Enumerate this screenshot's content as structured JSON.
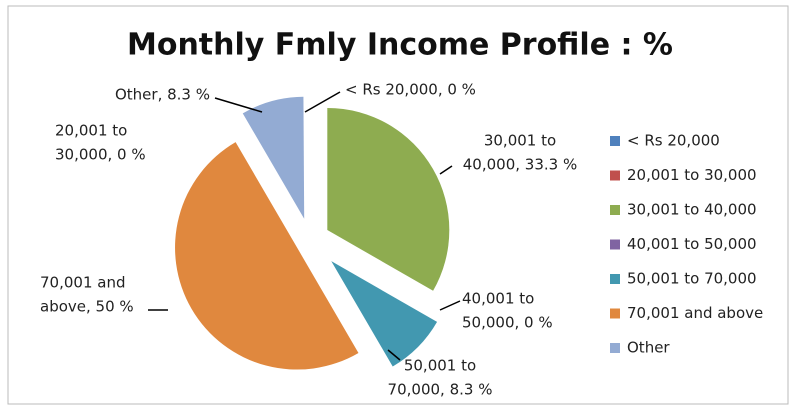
{
  "chart_data": {
    "type": "pie",
    "title": "Monthly Fmly  Income Profile : %",
    "categories": [
      "< Rs 20,000",
      "20,001 to 30,000",
      "30,001 to 40,000",
      "40,001 to 50,000",
      "50,001 to 70,000",
      "70,001 and above",
      "Other"
    ],
    "values": [
      0,
      0,
      33.3,
      0,
      8.3,
      50,
      8.3
    ],
    "value_labels": [
      [
        "< Rs 20,000, 0 %"
      ],
      [
        "20,001 to",
        "30,000, 0 %"
      ],
      [
        "30,001 to",
        "40,000, 33.3  %"
      ],
      [
        "40,001 to",
        "50,000, 0 %"
      ],
      [
        "50,001 to",
        "70,000, 8.3 %"
      ],
      [
        "70,001 and",
        "above, 50 %"
      ],
      [
        "Other, 8.3 %"
      ]
    ],
    "colors": [
      "#4f81bd",
      "#c0504d",
      "#8eac50",
      "#8064a2",
      "#4298b0",
      "#e0883e",
      "#93abd3"
    ],
    "legend": "right"
  }
}
